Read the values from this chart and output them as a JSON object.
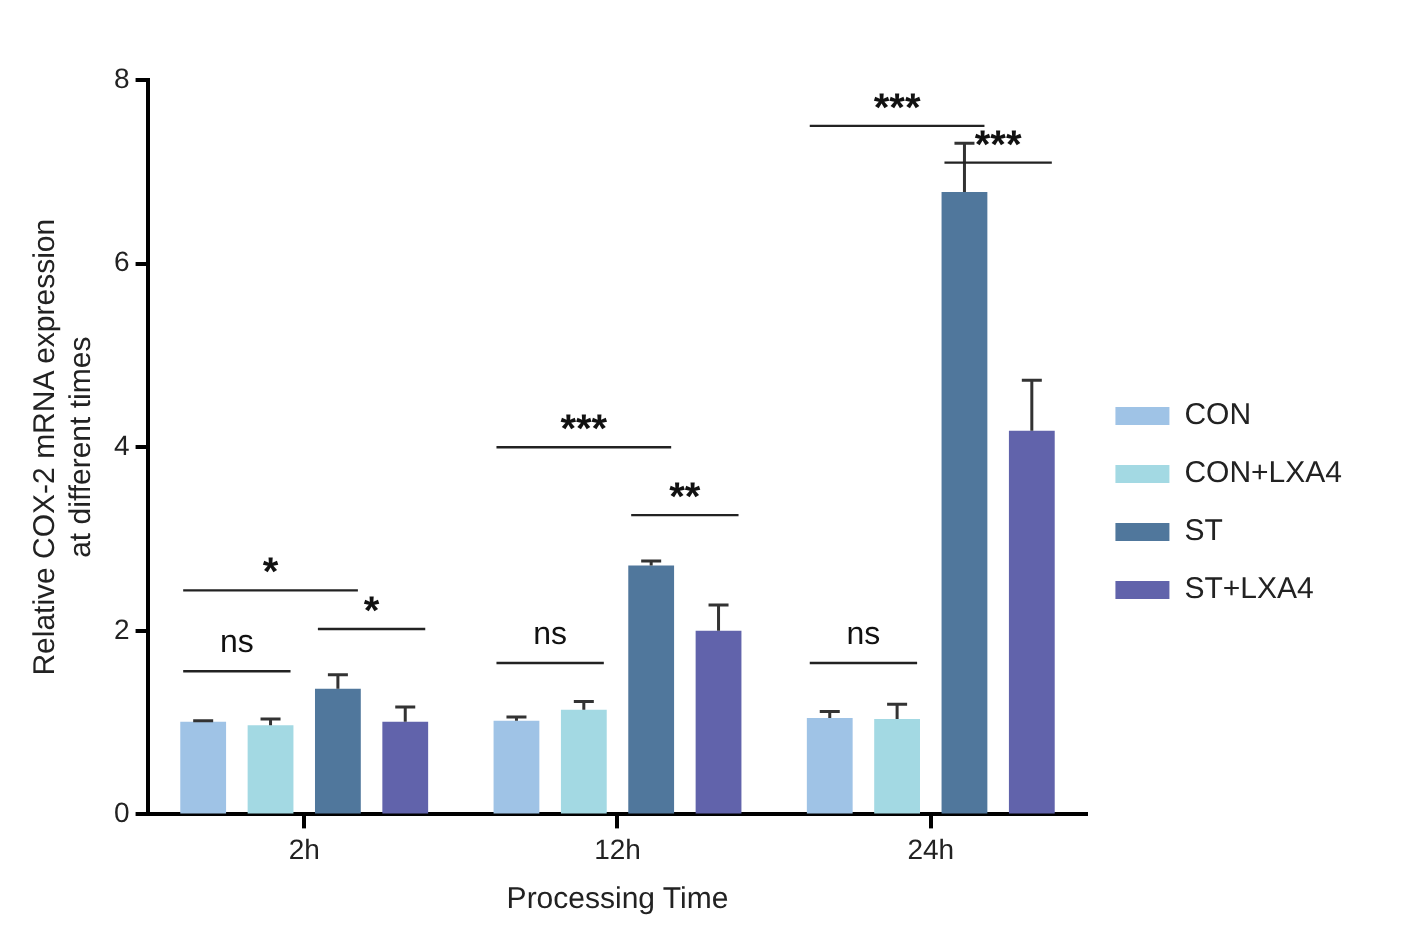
{
  "chart_data": {
    "type": "bar",
    "xlabel": "Processing Time",
    "ylabel": "Relative COX-2 mRNA expression\nat different times",
    "categories": [
      "2h",
      "12h",
      "24h"
    ],
    "series": [
      {
        "name": "CON",
        "color": "#9fc3e6",
        "values": [
          1.01,
          1.02,
          1.05
        ],
        "errors": [
          0.01,
          0.04,
          0.07
        ]
      },
      {
        "name": "CON+LXA4",
        "color": "#a3d9e3",
        "values": [
          0.97,
          1.14,
          1.04
        ],
        "errors": [
          0.07,
          0.09,
          0.16
        ]
      },
      {
        "name": "ST",
        "color": "#50779c",
        "values": [
          1.37,
          2.71,
          6.78
        ],
        "errors": [
          0.15,
          0.05,
          0.53
        ]
      },
      {
        "name": "ST+LXA4",
        "color": "#6163ab",
        "values": [
          1.01,
          2.0,
          4.18
        ],
        "errors": [
          0.16,
          0.28,
          0.55
        ]
      }
    ],
    "ylim": [
      0,
      8
    ],
    "yticks": [
      0,
      2,
      4,
      6,
      8
    ],
    "grid": false,
    "legend": "right",
    "annotations": [
      "ns",
      "*",
      "*",
      "ns",
      "***",
      "**",
      "ns",
      "***",
      "***"
    ]
  }
}
